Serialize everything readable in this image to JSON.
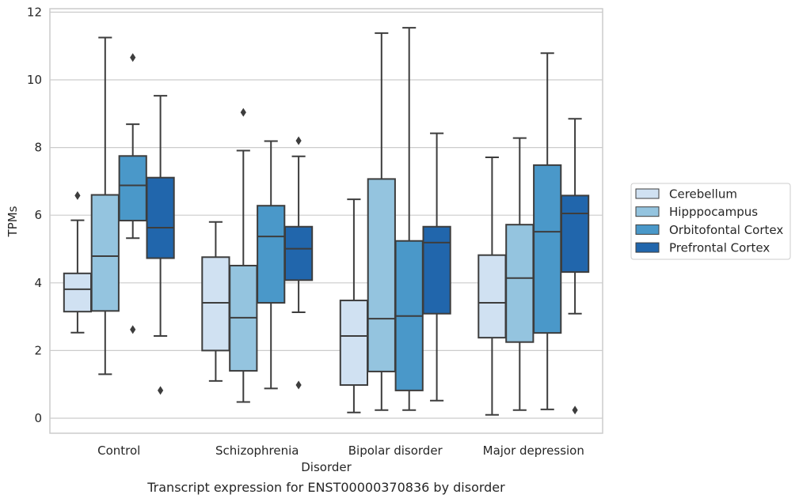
{
  "chart_data": {
    "type": "box",
    "xlabel": "Disorder",
    "ylabel": "TPMs",
    "caption": "Transcript expression for ENST00000370836 by disorder",
    "ylim": [
      -0.45,
      12.2
    ],
    "yticks": [
      0,
      2,
      4,
      6,
      8,
      10,
      12
    ],
    "grid": "horizontal",
    "legend_position": "right",
    "categories": [
      "Control",
      "Schizophrenia",
      "Bipolar disorder",
      "Major depression"
    ],
    "series": [
      {
        "name": "Cerebellum",
        "color": "#d0e1f2",
        "boxes": [
          {
            "whisker_low": 2.53,
            "q1": 3.15,
            "median": 3.81,
            "q3": 4.28,
            "whisker_high": 5.85,
            "outliers": [
              6.58
            ]
          },
          {
            "whisker_low": 1.1,
            "q1": 2.0,
            "median": 3.41,
            "q3": 4.76,
            "whisker_high": 5.8,
            "outliers": []
          },
          {
            "whisker_low": 0.17,
            "q1": 0.98,
            "median": 2.43,
            "q3": 3.48,
            "whisker_high": 6.47,
            "outliers": []
          },
          {
            "whisker_low": 0.1,
            "q1": 2.38,
            "median": 3.41,
            "q3": 4.82,
            "whisker_high": 7.71,
            "outliers": []
          }
        ]
      },
      {
        "name": "Hipppocampus",
        "color": "#94c4df",
        "boxes": [
          {
            "whisker_low": 1.3,
            "q1": 3.17,
            "median": 4.79,
            "q3": 6.6,
            "whisker_high": 11.25,
            "outliers": []
          },
          {
            "whisker_low": 0.48,
            "q1": 1.4,
            "median": 2.97,
            "q3": 4.51,
            "whisker_high": 7.91,
            "outliers": [
              9.04
            ]
          },
          {
            "whisker_low": 0.24,
            "q1": 1.38,
            "median": 2.94,
            "q3": 7.07,
            "whisker_high": 11.38,
            "outliers": []
          },
          {
            "whisker_low": 0.24,
            "q1": 2.25,
            "median": 4.14,
            "q3": 5.72,
            "whisker_high": 8.28,
            "outliers": []
          }
        ]
      },
      {
        "name": "Orbitofontal Cortex",
        "color": "#4a98c9",
        "boxes": [
          {
            "whisker_low": 5.32,
            "q1": 5.84,
            "median": 6.88,
            "q3": 7.75,
            "whisker_high": 8.69,
            "outliers": [
              10.66,
              2.62
            ]
          },
          {
            "whisker_low": 0.88,
            "q1": 3.41,
            "median": 5.37,
            "q3": 6.28,
            "whisker_high": 8.19,
            "outliers": []
          },
          {
            "whisker_low": 0.24,
            "q1": 0.82,
            "median": 3.02,
            "q3": 5.24,
            "whisker_high": 11.54,
            "outliers": []
          },
          {
            "whisker_low": 0.26,
            "q1": 2.52,
            "median": 5.51,
            "q3": 7.48,
            "whisker_high": 10.79,
            "outliers": []
          }
        ]
      },
      {
        "name": "Prefrontal Cortex",
        "color": "#2166ac",
        "boxes": [
          {
            "whisker_low": 2.43,
            "q1": 4.73,
            "median": 5.63,
            "q3": 7.11,
            "whisker_high": 9.53,
            "outliers": [
              0.82
            ]
          },
          {
            "whisker_low": 3.13,
            "q1": 4.08,
            "median": 5.01,
            "q3": 5.66,
            "whisker_high": 7.74,
            "outliers": [
              8.2,
              0.98
            ]
          },
          {
            "whisker_low": 0.52,
            "q1": 3.09,
            "median": 5.19,
            "q3": 5.66,
            "whisker_high": 8.42,
            "outliers": []
          },
          {
            "whisker_low": 3.09,
            "q1": 4.32,
            "median": 6.05,
            "q3": 6.58,
            "whisker_high": 8.85,
            "outliers": [
              0.24
            ]
          }
        ]
      }
    ]
  }
}
